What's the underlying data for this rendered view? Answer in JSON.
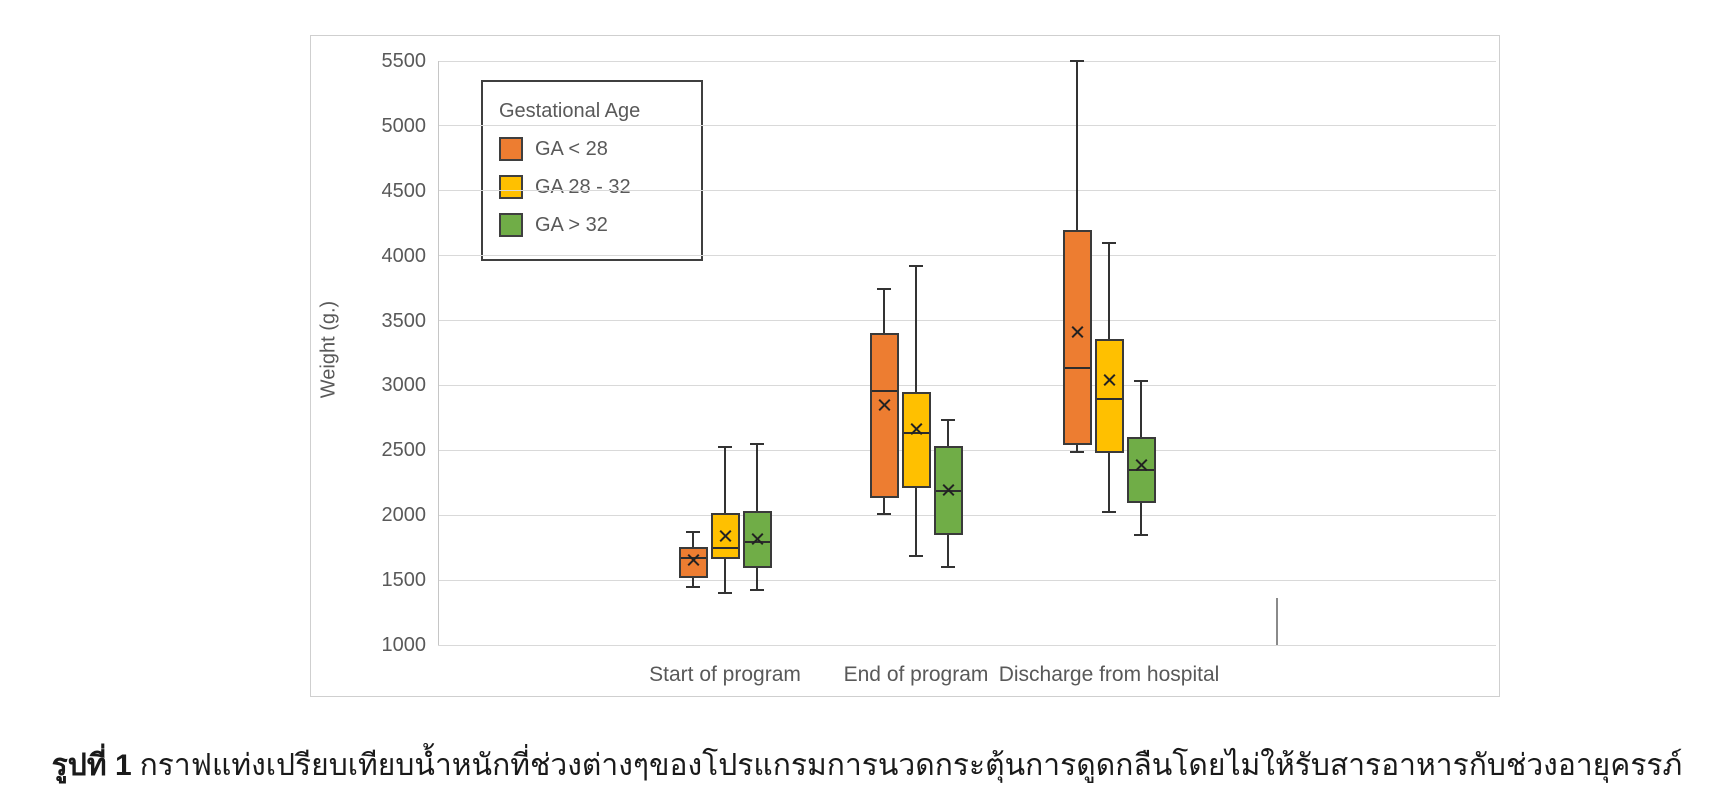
{
  "caption": {
    "label": "รูปที่ 1",
    "text": "กราฟแท่งเปรียบเทียบน้ำหนักที่ช่วงต่างๆของโปรแกรมการนวดกระตุ้นการดูดกลืนโดยไม่ให้รับสารอาหารกับช่วงอายุครรภ์"
  },
  "chart_data": {
    "type": "boxplot",
    "title": "",
    "ylabel": "Weight (g.)",
    "xlabel": "",
    "grid": true,
    "ylim": [
      1000,
      5500
    ],
    "yticks": [
      5500,
      5000,
      4500,
      4000,
      3500,
      3000,
      2500,
      2000,
      1500,
      1000
    ],
    "legend_title": "Gestational Age",
    "legend_position": "top-left-inside",
    "categories": [
      "Start of program",
      "End of program",
      "Discharge from hospital"
    ],
    "series": [
      {
        "name": "GA < 28",
        "color": "#ED7D31",
        "boxes": [
          {
            "whisker_low": 1450,
            "q1": 1520,
            "median": 1670,
            "mean": 1655,
            "q3": 1755,
            "whisker_high": 1870
          },
          {
            "whisker_low": 2010,
            "q1": 2135,
            "median": 2960,
            "mean": 2850,
            "q3": 3405,
            "whisker_high": 3745
          },
          {
            "whisker_low": 2490,
            "q1": 2540,
            "median": 3135,
            "mean": 3410,
            "q3": 4195,
            "whisker_high": 5500
          }
        ]
      },
      {
        "name": "GA 28 - 32",
        "color": "#FFC000",
        "boxes": [
          {
            "whisker_low": 1400,
            "q1": 1665,
            "median": 1750,
            "mean": 1840,
            "q3": 2020,
            "whisker_high": 2525
          },
          {
            "whisker_low": 1685,
            "q1": 2210,
            "median": 2635,
            "mean": 2665,
            "q3": 2950,
            "whisker_high": 3920
          },
          {
            "whisker_low": 2025,
            "q1": 2480,
            "median": 2895,
            "mean": 3045,
            "q3": 3355,
            "whisker_high": 4100
          }
        ]
      },
      {
        "name": "GA > 32",
        "color": "#70AD47",
        "boxes": [
          {
            "whisker_low": 1425,
            "q1": 1595,
            "median": 1795,
            "mean": 1820,
            "q3": 2035,
            "whisker_high": 2545
          },
          {
            "whisker_low": 1600,
            "q1": 1845,
            "median": 2185,
            "mean": 2195,
            "q3": 2535,
            "whisker_high": 2735
          },
          {
            "whisker_low": 1850,
            "q1": 2095,
            "median": 2350,
            "mean": 2385,
            "q3": 2600,
            "whisker_high": 3035
          }
        ]
      }
    ],
    "colors": {
      "gridline": "#d9d9d9",
      "axis_text": "#595959",
      "box_border": "#3a3a3a"
    }
  }
}
